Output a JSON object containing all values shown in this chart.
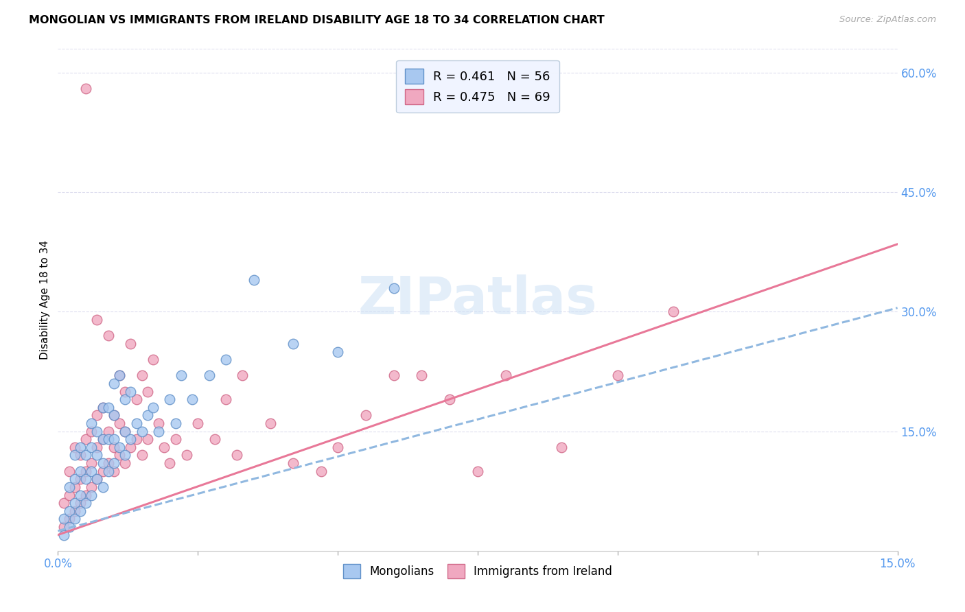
{
  "title": "MONGOLIAN VS IMMIGRANTS FROM IRELAND DISABILITY AGE 18 TO 34 CORRELATION CHART",
  "source": "Source: ZipAtlas.com",
  "ylabel": "Disability Age 18 to 34",
  "xlim": [
    0.0,
    0.15
  ],
  "ylim": [
    0.0,
    0.63
  ],
  "yticks_right": [
    0.15,
    0.3,
    0.45,
    0.6
  ],
  "ytick_labels_right": [
    "15.0%",
    "30.0%",
    "45.0%",
    "60.0%"
  ],
  "xticks": [
    0.0,
    0.025,
    0.05,
    0.075,
    0.1,
    0.125,
    0.15
  ],
  "mongolian_color": "#a8c8f0",
  "mongolian_edge": "#6090c8",
  "ireland_color": "#f0a8c0",
  "ireland_edge": "#d06888",
  "mongolian_line_color": "#90b8e0",
  "ireland_line_color": "#e87898",
  "blue_label_color": "#5599ee",
  "R_mongolian": 0.461,
  "N_mongolian": 56,
  "R_ireland": 0.475,
  "N_ireland": 69,
  "watermark": "ZIPatlas",
  "watermark_color": "#cce0f5",
  "legend_facecolor": "#f0f4ff",
  "legend_edgecolor": "#bbccdd",
  "mongolian_line_x0": 0.0,
  "mongolian_line_y0": 0.025,
  "mongolian_line_x1": 0.15,
  "mongolian_line_y1": 0.305,
  "ireland_line_x0": 0.0,
  "ireland_line_y0": 0.02,
  "ireland_line_x1": 0.15,
  "ireland_line_y1": 0.385,
  "mongolian_x": [
    0.001,
    0.001,
    0.002,
    0.002,
    0.002,
    0.003,
    0.003,
    0.003,
    0.003,
    0.004,
    0.004,
    0.004,
    0.004,
    0.005,
    0.005,
    0.005,
    0.006,
    0.006,
    0.006,
    0.006,
    0.007,
    0.007,
    0.007,
    0.008,
    0.008,
    0.008,
    0.008,
    0.009,
    0.009,
    0.009,
    0.01,
    0.01,
    0.01,
    0.01,
    0.011,
    0.011,
    0.012,
    0.012,
    0.012,
    0.013,
    0.013,
    0.014,
    0.015,
    0.016,
    0.017,
    0.018,
    0.02,
    0.021,
    0.022,
    0.024,
    0.027,
    0.03,
    0.035,
    0.042,
    0.05,
    0.06
  ],
  "mongolian_y": [
    0.02,
    0.04,
    0.03,
    0.05,
    0.08,
    0.04,
    0.06,
    0.09,
    0.12,
    0.05,
    0.07,
    0.1,
    0.13,
    0.06,
    0.09,
    0.12,
    0.07,
    0.1,
    0.13,
    0.16,
    0.09,
    0.12,
    0.15,
    0.08,
    0.11,
    0.14,
    0.18,
    0.1,
    0.14,
    0.18,
    0.11,
    0.14,
    0.17,
    0.21,
    0.13,
    0.22,
    0.12,
    0.15,
    0.19,
    0.14,
    0.2,
    0.16,
    0.15,
    0.17,
    0.18,
    0.15,
    0.19,
    0.16,
    0.22,
    0.19,
    0.22,
    0.24,
    0.34,
    0.26,
    0.25,
    0.33
  ],
  "ireland_x": [
    0.001,
    0.001,
    0.002,
    0.002,
    0.002,
    0.003,
    0.003,
    0.003,
    0.004,
    0.004,
    0.004,
    0.005,
    0.005,
    0.005,
    0.005,
    0.006,
    0.006,
    0.006,
    0.007,
    0.007,
    0.007,
    0.007,
    0.008,
    0.008,
    0.008,
    0.009,
    0.009,
    0.009,
    0.01,
    0.01,
    0.01,
    0.011,
    0.011,
    0.011,
    0.012,
    0.012,
    0.012,
    0.013,
    0.013,
    0.014,
    0.014,
    0.015,
    0.015,
    0.016,
    0.016,
    0.017,
    0.018,
    0.019,
    0.02,
    0.021,
    0.023,
    0.025,
    0.028,
    0.03,
    0.033,
    0.038,
    0.042,
    0.05,
    0.06,
    0.07,
    0.08,
    0.09,
    0.1,
    0.11,
    0.032,
    0.047,
    0.055,
    0.065,
    0.075
  ],
  "ireland_y": [
    0.03,
    0.06,
    0.04,
    0.07,
    0.1,
    0.05,
    0.08,
    0.13,
    0.06,
    0.09,
    0.12,
    0.07,
    0.1,
    0.14,
    0.58,
    0.08,
    0.11,
    0.15,
    0.09,
    0.13,
    0.17,
    0.29,
    0.1,
    0.14,
    0.18,
    0.11,
    0.15,
    0.27,
    0.1,
    0.13,
    0.17,
    0.12,
    0.16,
    0.22,
    0.11,
    0.15,
    0.2,
    0.13,
    0.26,
    0.14,
    0.19,
    0.12,
    0.22,
    0.14,
    0.2,
    0.24,
    0.16,
    0.13,
    0.11,
    0.14,
    0.12,
    0.16,
    0.14,
    0.19,
    0.22,
    0.16,
    0.11,
    0.13,
    0.22,
    0.19,
    0.22,
    0.13,
    0.22,
    0.3,
    0.12,
    0.1,
    0.17,
    0.22,
    0.1
  ]
}
